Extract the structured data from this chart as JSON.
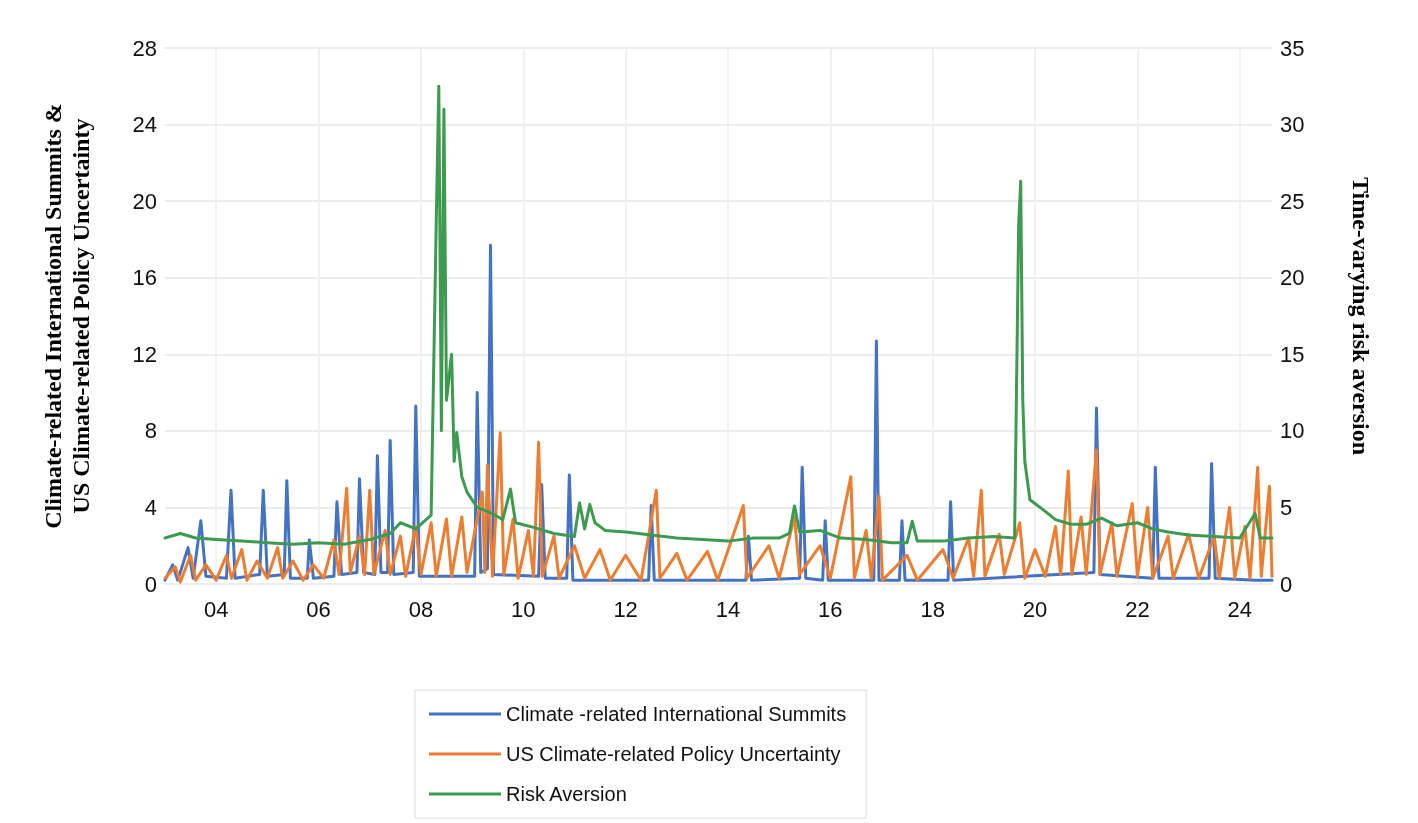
{
  "chart_data": {
    "type": "line",
    "ylabel": "Climate-related International Summits & US Climate-related Policy Uncertainty",
    "y2label": "Time-varying risk aversion",
    "xlim": [
      2003,
      2024.63
    ],
    "xticks": [
      {
        "value": 2004,
        "label": "04"
      },
      {
        "value": 2006,
        "label": "06"
      },
      {
        "value": 2008,
        "label": "08"
      },
      {
        "value": 2010,
        "label": "10"
      },
      {
        "value": 2012,
        "label": "12"
      },
      {
        "value": 2014,
        "label": "14"
      },
      {
        "value": 2016,
        "label": "16"
      },
      {
        "value": 2018,
        "label": "18"
      },
      {
        "value": 2020,
        "label": "20"
      },
      {
        "value": 2022,
        "label": "22"
      },
      {
        "value": 2024,
        "label": "24"
      }
    ],
    "ylim": [
      0,
      28
    ],
    "yticks": [
      0,
      4,
      8,
      12,
      16,
      20,
      24,
      28
    ],
    "y2lim": [
      0,
      35
    ],
    "y2ticks": [
      0,
      5,
      10,
      15,
      20,
      25,
      30,
      35
    ],
    "grid": true,
    "legend": "bottom",
    "marker": "none",
    "line_style": "solid",
    "series": [
      {
        "name": "Climate -related International Summits",
        "color": "#4472c4",
        "x": [
          2003.0,
          2003.15,
          2003.25,
          2003.45,
          2003.55,
          2003.7,
          2003.8,
          2004.2,
          2004.29,
          2004.37,
          2004.85,
          2004.92,
          2005.0,
          2005.33,
          2005.38,
          2005.45,
          2005.78,
          2005.82,
          2005.9,
          2006.3,
          2006.36,
          2006.45,
          2006.75,
          2006.8,
          2006.88,
          2007.1,
          2007.15,
          2007.22,
          2007.35,
          2007.4,
          2007.47,
          2007.85,
          2007.9,
          2007.97,
          2009.05,
          2009.1,
          2009.17,
          2009.3,
          2009.36,
          2009.42,
          2010.3,
          2010.36,
          2010.43,
          2010.85,
          2010.9,
          2010.97,
          2012.45,
          2012.5,
          2012.56,
          2014.35,
          2014.4,
          2014.46,
          2015.4,
          2015.45,
          2015.52,
          2015.85,
          2015.9,
          2015.96,
          2016.85,
          2016.9,
          2016.95,
          2017.35,
          2017.4,
          2017.46,
          2018.3,
          2018.35,
          2018.41,
          2021.15,
          2021.2,
          2021.27,
          2022.3,
          2022.35,
          2022.42,
          2023.4,
          2023.45,
          2023.52,
          2024.3,
          2024.63
        ],
        "values": [
          0.2,
          1.0,
          0.2,
          1.9,
          0.3,
          3.3,
          0.4,
          0.3,
          4.9,
          0.3,
          0.5,
          4.9,
          0.4,
          0.5,
          5.4,
          0.3,
          0.3,
          2.3,
          0.3,
          0.4,
          4.3,
          0.5,
          0.6,
          5.5,
          0.6,
          0.5,
          6.7,
          0.6,
          0.6,
          7.5,
          0.5,
          0.6,
          9.3,
          0.4,
          0.4,
          10.0,
          0.6,
          0.8,
          17.7,
          0.5,
          0.4,
          5.2,
          0.3,
          0.3,
          5.7,
          0.2,
          0.2,
          4.1,
          0.2,
          0.2,
          2.5,
          0.2,
          0.3,
          6.1,
          0.3,
          0.2,
          3.3,
          0.2,
          0.2,
          12.7,
          0.2,
          0.2,
          3.3,
          0.2,
          0.2,
          4.3,
          0.2,
          0.6,
          9.2,
          0.5,
          0.3,
          6.1,
          0.3,
          0.3,
          6.3,
          0.3,
          0.2,
          0.2
        ]
      },
      {
        "name": "US Climate-related Policy Uncertainty",
        "color": "#ed7d31",
        "x": [
          2003.0,
          2003.2,
          2003.3,
          2003.5,
          2003.6,
          2003.8,
          2004.0,
          2004.2,
          2004.3,
          2004.5,
          2004.6,
          2004.8,
          2005.0,
          2005.2,
          2005.3,
          2005.5,
          2005.7,
          2005.9,
          2006.1,
          2006.3,
          2006.4,
          2006.55,
          2006.62,
          2006.8,
          2006.9,
          2007.0,
          2007.08,
          2007.3,
          2007.4,
          2007.6,
          2007.7,
          2007.9,
          2008.0,
          2008.2,
          2008.3,
          2008.5,
          2008.6,
          2008.8,
          2008.9,
          2009.2,
          2009.25,
          2009.3,
          2009.4,
          2009.55,
          2009.62,
          2009.8,
          2009.9,
          2010.1,
          2010.2,
          2010.3,
          2010.37,
          2010.6,
          2010.7,
          2011.0,
          2011.2,
          2011.5,
          2011.7,
          2012.0,
          2012.3,
          2012.6,
          2012.67,
          2013.0,
          2013.2,
          2013.6,
          2013.8,
          2014.3,
          2014.37,
          2014.8,
          2015.0,
          2015.3,
          2015.4,
          2015.8,
          2016.0,
          2016.4,
          2016.47,
          2016.7,
          2016.8,
          2016.95,
          2017.02,
          2017.5,
          2017.7,
          2018.2,
          2018.4,
          2018.7,
          2018.8,
          2018.95,
          2019.02,
          2019.3,
          2019.4,
          2019.7,
          2019.8,
          2020.0,
          2020.2,
          2020.4,
          2020.5,
          2020.65,
          2020.72,
          2020.9,
          2021.0,
          2021.2,
          2021.27,
          2021.5,
          2021.6,
          2021.9,
          2022.0,
          2022.2,
          2022.3,
          2022.6,
          2022.7,
          2023.0,
          2023.2,
          2023.5,
          2023.6,
          2023.8,
          2023.9,
          2024.1,
          2024.2,
          2024.35,
          2024.42,
          2024.58,
          2024.63
        ],
        "values": [
          0.3,
          0.9,
          0.1,
          1.5,
          0.2,
          1.0,
          0.2,
          1.5,
          0.3,
          1.8,
          0.2,
          1.2,
          0.3,
          1.9,
          0.3,
          1.2,
          0.2,
          1.0,
          0.3,
          2.3,
          0.5,
          5.0,
          0.6,
          2.5,
          0.5,
          4.9,
          0.5,
          2.8,
          0.5,
          2.5,
          0.4,
          3.0,
          0.5,
          3.2,
          0.4,
          3.4,
          0.4,
          3.5,
          0.6,
          4.8,
          0.6,
          6.2,
          0.4,
          7.9,
          0.5,
          3.4,
          0.3,
          2.8,
          0.4,
          7.4,
          0.4,
          2.5,
          0.3,
          2.0,
          0.3,
          1.8,
          0.2,
          1.5,
          0.2,
          4.9,
          0.3,
          1.6,
          0.2,
          1.7,
          0.2,
          4.1,
          0.3,
          2.0,
          0.3,
          3.5,
          0.5,
          2.0,
          0.3,
          5.6,
          0.3,
          2.8,
          0.3,
          4.6,
          0.2,
          1.5,
          0.2,
          1.8,
          0.3,
          2.4,
          0.4,
          4.9,
          0.4,
          2.6,
          0.5,
          3.2,
          0.3,
          1.8,
          0.4,
          3.0,
          0.5,
          5.9,
          0.5,
          3.5,
          0.5,
          7.0,
          0.5,
          3.2,
          0.4,
          4.2,
          0.4,
          4.0,
          0.3,
          2.5,
          0.3,
          2.6,
          0.3,
          2.5,
          0.3,
          4.0,
          0.3,
          3.0,
          0.3,
          6.1,
          0.4,
          5.1,
          0.4
        ]
      },
      {
        "name": "Risk Aversion",
        "color": "#3d9a50",
        "axis": "y2",
        "x": [
          2003.0,
          2003.3,
          2003.6,
          2004.0,
          2004.5,
          2005.0,
          2005.5,
          2006.0,
          2006.5,
          2007.0,
          2007.4,
          2007.6,
          2007.9,
          2008.2,
          2008.3,
          2008.35,
          2008.4,
          2008.45,
          2008.5,
          2008.6,
          2008.65,
          2008.7,
          2008.8,
          2008.9,
          2009.1,
          2009.4,
          2009.6,
          2009.75,
          2009.85,
          2010.2,
          2010.6,
          2011.0,
          2011.1,
          2011.2,
          2011.3,
          2011.4,
          2011.6,
          2012.0,
          2012.5,
          2013.0,
          2013.5,
          2014.0,
          2014.5,
          2015.0,
          2015.2,
          2015.3,
          2015.4,
          2015.8,
          2016.2,
          2016.7,
          2017.2,
          2017.5,
          2017.6,
          2017.7,
          2018.2,
          2018.7,
          2019.2,
          2019.6,
          2019.68,
          2019.72,
          2019.76,
          2019.8,
          2019.9,
          2020.1,
          2020.4,
          2020.7,
          2021.0,
          2021.3,
          2021.6,
          2022.0,
          2022.3,
          2022.6,
          2023.0,
          2023.5,
          2024.0,
          2024.3,
          2024.4,
          2024.63
        ],
        "values": [
          3.0,
          3.3,
          3.0,
          2.9,
          2.8,
          2.7,
          2.6,
          2.7,
          2.6,
          2.9,
          3.3,
          4.0,
          3.6,
          4.5,
          23.7,
          32.5,
          10,
          31.0,
          12,
          15,
          8,
          9.9,
          7,
          6.0,
          5.0,
          4.6,
          4.2,
          6.2,
          4.0,
          3.7,
          3.3,
          3.1,
          5.3,
          3.6,
          5.2,
          4.0,
          3.5,
          3.4,
          3.2,
          3.0,
          2.9,
          2.8,
          3.0,
          3.0,
          3.3,
          5.1,
          3.4,
          3.5,
          3.0,
          2.9,
          2.7,
          2.7,
          4.1,
          2.8,
          2.8,
          3.0,
          3.1,
          3.0,
          23.5,
          26.3,
          12,
          8.0,
          5.5,
          5.0,
          4.2,
          3.9,
          3.9,
          4.3,
          3.8,
          4.0,
          3.6,
          3.4,
          3.2,
          3.1,
          3.0,
          4.6,
          3.0,
          3.0
        ]
      }
    ]
  }
}
